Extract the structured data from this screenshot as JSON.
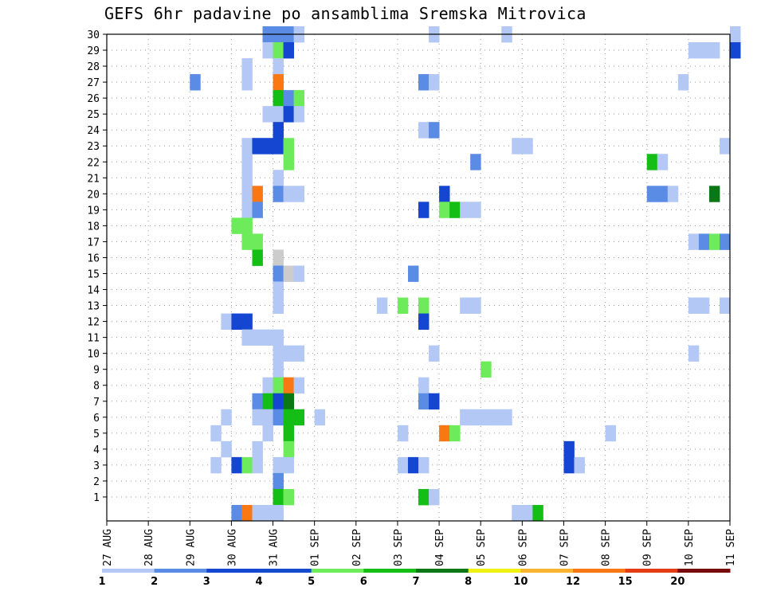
{
  "chart_data": {
    "type": "heatmap",
    "title": "GEFS 6hr padavine po ansamblima Sremska Mitrovica",
    "x_ticks": [
      "27 AUG",
      "28 AUG",
      "29 AUG",
      "30 AUG",
      "31 AUG",
      "01 SEP",
      "02 SEP",
      "03 SEP",
      "04 SEP",
      "05 SEP",
      "06 SEP",
      "07 SEP",
      "08 SEP",
      "09 SEP",
      "10 SEP",
      "11 SEP"
    ],
    "y_ticks": [
      1,
      2,
      3,
      4,
      5,
      6,
      7,
      8,
      9,
      10,
      11,
      12,
      13,
      14,
      15,
      16,
      17,
      18,
      19,
      20,
      21,
      22,
      23,
      24,
      25,
      26,
      27,
      28,
      29,
      30
    ],
    "x_range": [
      "27 AUG",
      "11 SEP"
    ],
    "y_range": [
      0,
      30
    ],
    "grid": true,
    "colorbar": {
      "labels": [
        "1",
        "2",
        "3",
        "4",
        "5",
        "6",
        "7",
        "8",
        "10",
        "12",
        "15",
        "20"
      ],
      "colors": [
        "#b4c8f5",
        "#5a8ce6",
        "#1446d2",
        "#144bcd",
        "#6eeb5a",
        "#14be14",
        "#0a7814",
        "#f0f014",
        "#fab432",
        "#fa7814",
        "#e63c14",
        "#780a0a"
      ]
    },
    "levels": [
      "1",
      "2",
      "3",
      "4",
      "5",
      "6",
      "7",
      "8",
      "10",
      "12"
    ],
    "series": [
      {
        "member": 30,
        "cells": [
          [
            "30 AUG 18",
            2
          ],
          [
            "31 AUG 00",
            2
          ],
          [
            "31 AUG 06",
            2
          ],
          [
            "31 AUG 12",
            1
          ],
          [
            "03 SEP 18",
            1
          ],
          [
            "05 SEP 12",
            1
          ],
          [
            "11 SEP 00",
            1
          ]
        ]
      },
      {
        "member": 29,
        "cells": [
          [
            "30 AUG 18",
            1
          ],
          [
            "31 AUG 00",
            5
          ],
          [
            "31 AUG 06",
            3
          ],
          [
            "10 SEP 00",
            1
          ],
          [
            "10 SEP 06",
            1
          ],
          [
            "10 SEP 12",
            1
          ],
          [
            "11 SEP 00",
            3
          ]
        ]
      },
      {
        "member": 28,
        "cells": [
          [
            "30 AUG 06",
            1
          ],
          [
            "31 AUG 00",
            1
          ]
        ]
      },
      {
        "member": 27,
        "cells": [
          [
            "29 AUG 00",
            2
          ],
          [
            "30 AUG 06",
            1
          ],
          [
            "31 AUG 00",
            10
          ],
          [
            "03 SEP 12",
            2
          ],
          [
            "03 SEP 18",
            1
          ],
          [
            "09 SEP 18",
            1
          ]
        ]
      },
      {
        "member": 26,
        "cells": [
          [
            "31 AUG 00",
            6
          ],
          [
            "31 AUG 06",
            2
          ],
          [
            "31 AUG 12",
            5
          ]
        ]
      },
      {
        "member": 25,
        "cells": [
          [
            "30 AUG 18",
            1
          ],
          [
            "31 AUG 00",
            1
          ],
          [
            "31 AUG 06",
            3
          ],
          [
            "31 AUG 12",
            1
          ]
        ]
      },
      {
        "member": 24,
        "cells": [
          [
            "31 AUG 00",
            3
          ],
          [
            "03 SEP 12",
            1
          ],
          [
            "03 SEP 18",
            2
          ]
        ]
      },
      {
        "member": 23,
        "cells": [
          [
            "30 AUG 06",
            1
          ],
          [
            "30 AUG 12",
            3
          ],
          [
            "30 AUG 18",
            3
          ],
          [
            "31 AUG 00",
            3
          ],
          [
            "31 AUG 06",
            5
          ],
          [
            "05 SEP 18",
            1
          ],
          [
            "06 SEP 00",
            1
          ],
          [
            "10 SEP 18",
            1
          ]
        ]
      },
      {
        "member": 22,
        "cells": [
          [
            "30 AUG 06",
            1
          ],
          [
            "31 AUG 06",
            5
          ],
          [
            "04 SEP 18",
            2
          ],
          [
            "09 SEP 00",
            6
          ],
          [
            "09 SEP 06",
            1
          ]
        ]
      },
      {
        "member": 21,
        "cells": [
          [
            "30 AUG 06",
            1
          ],
          [
            "31 AUG 00",
            1
          ]
        ]
      },
      {
        "member": 20,
        "cells": [
          [
            "30 AUG 06",
            1
          ],
          [
            "30 AUG 12",
            10
          ],
          [
            "31 AUG 00",
            2
          ],
          [
            "31 AUG 06",
            1
          ],
          [
            "31 AUG 12",
            1
          ],
          [
            "04 SEP 00",
            3
          ],
          [
            "09 SEP 00",
            2
          ],
          [
            "09 SEP 06",
            2
          ],
          [
            "09 SEP 12",
            1
          ],
          [
            "10 SEP 12",
            7
          ]
        ]
      },
      {
        "member": 19,
        "cells": [
          [
            "30 AUG 06",
            1
          ],
          [
            "30 AUG 12",
            2
          ],
          [
            "03 SEP 12",
            3
          ],
          [
            "04 SEP 00",
            5
          ],
          [
            "04 SEP 06",
            6
          ],
          [
            "04 SEP 12",
            1
          ],
          [
            "04 SEP 18",
            1
          ]
        ]
      },
      {
        "member": 18,
        "cells": [
          [
            "30 AUG 00",
            5
          ],
          [
            "30 AUG 06",
            5
          ]
        ]
      },
      {
        "member": 17,
        "cells": [
          [
            "30 AUG 06",
            5
          ],
          [
            "30 AUG 12",
            5
          ],
          [
            "10 SEP 00",
            1
          ],
          [
            "10 SEP 06",
            2
          ],
          [
            "10 SEP 12",
            5
          ],
          [
            "10 SEP 18",
            2
          ]
        ]
      },
      {
        "member": 16,
        "cells": [
          [
            "30 AUG 12",
            6
          ],
          [
            "31 AUG 00",
            12
          ]
        ]
      },
      {
        "member": 15,
        "cells": [
          [
            "31 AUG 00",
            2
          ],
          [
            "31 AUG 06",
            12
          ],
          [
            "31 AUG 12",
            1
          ],
          [
            "03 SEP 06",
            2
          ]
        ]
      },
      {
        "member": 14,
        "cells": [
          [
            "31 AUG 00",
            1
          ]
        ]
      },
      {
        "member": 13,
        "cells": [
          [
            "31 AUG 00",
            1
          ],
          [
            "02 SEP 12",
            1
          ],
          [
            "03 SEP 00",
            5
          ],
          [
            "03 SEP 12",
            5
          ],
          [
            "04 SEP 12",
            1
          ],
          [
            "04 SEP 18",
            1
          ],
          [
            "10 SEP 00",
            1
          ],
          [
            "10 SEP 06",
            1
          ],
          [
            "10 SEP 18",
            1
          ]
        ]
      },
      {
        "member": 12,
        "cells": [
          [
            "29 AUG 18",
            1
          ],
          [
            "30 AUG 00",
            3
          ],
          [
            "30 AUG 06",
            3
          ],
          [
            "03 SEP 12",
            3
          ]
        ]
      },
      {
        "member": 11,
        "cells": [
          [
            "30 AUG 06",
            1
          ],
          [
            "30 AUG 12",
            1
          ],
          [
            "30 AUG 18",
            1
          ],
          [
            "31 AUG 00",
            1
          ]
        ]
      },
      {
        "member": 10,
        "cells": [
          [
            "31 AUG 00",
            1
          ],
          [
            "31 AUG 06",
            1
          ],
          [
            "31 AUG 12",
            1
          ],
          [
            "03 SEP 18",
            1
          ],
          [
            "10 SEP 00",
            1
          ]
        ]
      },
      {
        "member": 9,
        "cells": [
          [
            "31 AUG 00",
            1
          ],
          [
            "05 SEP 00",
            5
          ]
        ]
      },
      {
        "member": 8,
        "cells": [
          [
            "30 AUG 18",
            1
          ],
          [
            "31 AUG 00",
            5
          ],
          [
            "31 AUG 06",
            10
          ],
          [
            "31 AUG 12",
            1
          ],
          [
            "03 SEP 12",
            1
          ]
        ]
      },
      {
        "member": 7,
        "cells": [
          [
            "30 AUG 12",
            2
          ],
          [
            "30 AUG 18",
            6
          ],
          [
            "31 AUG 00",
            3
          ],
          [
            "31 AUG 06",
            7
          ],
          [
            "03 SEP 12",
            2
          ],
          [
            "03 SEP 18",
            3
          ]
        ]
      },
      {
        "member": 6,
        "cells": [
          [
            "29 AUG 18",
            1
          ],
          [
            "30 AUG 12",
            1
          ],
          [
            "30 AUG 18",
            1
          ],
          [
            "31 AUG 00",
            2
          ],
          [
            "31 AUG 06",
            6
          ],
          [
            "31 AUG 12",
            6
          ],
          [
            "01 SEP 00",
            1
          ],
          [
            "04 SEP 12",
            1
          ],
          [
            "04 SEP 18",
            1
          ],
          [
            "05 SEP 00",
            1
          ],
          [
            "05 SEP 06",
            1
          ],
          [
            "05 SEP 12",
            1
          ]
        ]
      },
      {
        "member": 5,
        "cells": [
          [
            "29 AUG 12",
            1
          ],
          [
            "30 AUG 18",
            1
          ],
          [
            "31 AUG 06",
            6
          ],
          [
            "03 SEP 00",
            1
          ],
          [
            "04 SEP 00",
            10
          ],
          [
            "04 SEP 06",
            5
          ],
          [
            "08 SEP 00",
            1
          ]
        ]
      },
      {
        "member": 4,
        "cells": [
          [
            "29 AUG 18",
            1
          ],
          [
            "30 AUG 12",
            1
          ],
          [
            "31 AUG 06",
            5
          ],
          [
            "07 SEP 00",
            3
          ]
        ]
      },
      {
        "member": 3,
        "cells": [
          [
            "29 AUG 12",
            1
          ],
          [
            "30 AUG 00",
            3
          ],
          [
            "30 AUG 06",
            5
          ],
          [
            "30 AUG 12",
            1
          ],
          [
            "31 AUG 00",
            1
          ],
          [
            "31 AUG 06",
            1
          ],
          [
            "03 SEP 00",
            1
          ],
          [
            "03 SEP 06",
            3
          ],
          [
            "03 SEP 12",
            1
          ],
          [
            "07 SEP 00",
            3
          ],
          [
            "07 SEP 06",
            1
          ]
        ]
      },
      {
        "member": 2,
        "cells": [
          [
            "31 AUG 00",
            2
          ]
        ]
      },
      {
        "member": 1,
        "cells": [
          [
            "31 AUG 00",
            6
          ],
          [
            "31 AUG 06",
            5
          ],
          [
            "03 SEP 12",
            6
          ],
          [
            "03 SEP 18",
            1
          ]
        ]
      },
      {
        "member": 0,
        "cells": [
          [
            "30 AUG 00",
            2
          ],
          [
            "30 AUG 06",
            10
          ],
          [
            "30 AUG 12",
            1
          ],
          [
            "30 AUG 18",
            1
          ],
          [
            "31 AUG 00",
            1
          ],
          [
            "05 SEP 18",
            1
          ],
          [
            "06 SEP 00",
            1
          ],
          [
            "06 SEP 06",
            6
          ]
        ]
      }
    ]
  }
}
